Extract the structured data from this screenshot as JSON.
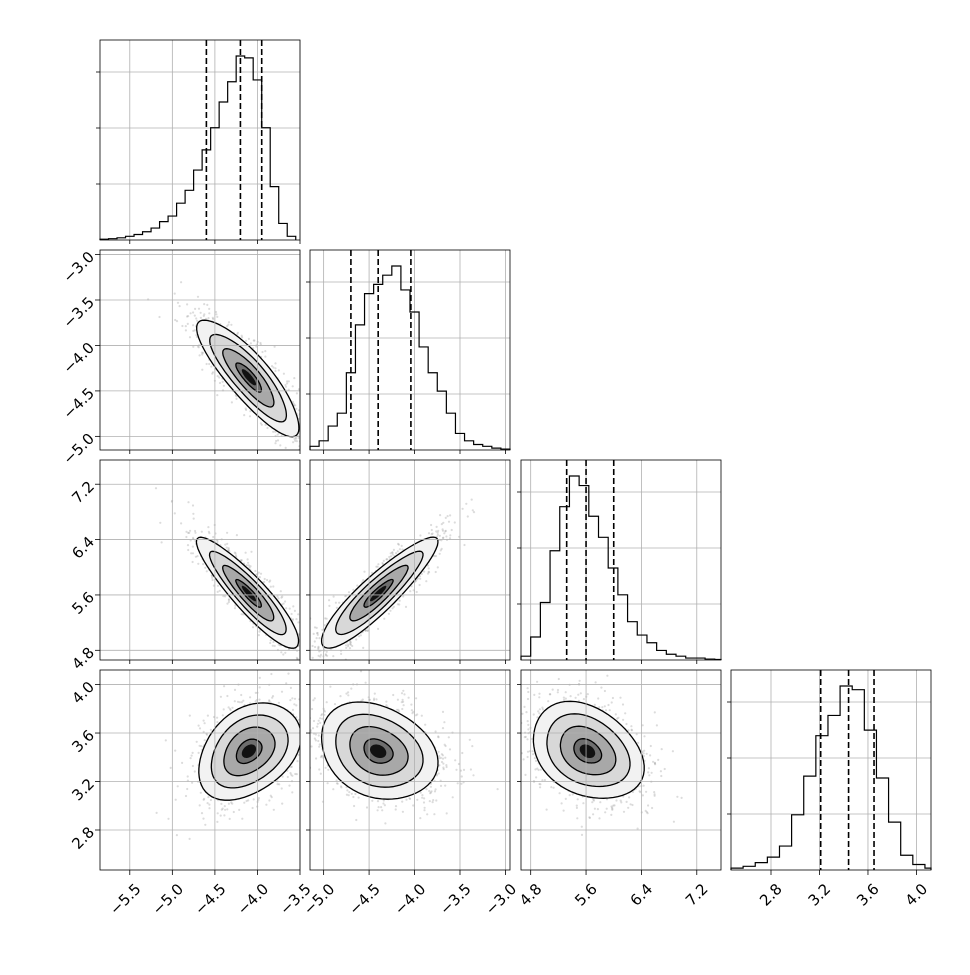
{
  "chart_data": {
    "type": "corner",
    "title": "",
    "params": [
      {
        "ticks": [
          -5.5,
          -5.0,
          -4.5,
          -4.0,
          -3.5
        ],
        "tick_labels": [
          "−5.5",
          "−5.0",
          "−4.5",
          "−4.0",
          "−3.5"
        ],
        "range": [
          -5.85,
          -3.5
        ]
      },
      {
        "ticks": [
          -5.0,
          -4.5,
          -4.0,
          -3.5,
          -3.0
        ],
        "tick_labels": [
          "−5.0",
          "−4.5",
          "−4.0",
          "−3.5",
          "−3.0"
        ],
        "range": [
          -5.15,
          -2.95
        ]
      },
      {
        "ticks": [
          4.8,
          5.6,
          6.4,
          7.2
        ],
        "tick_labels": [
          "4.8",
          "5.6",
          "6.4",
          "7.2"
        ],
        "range": [
          4.66,
          7.55
        ]
      },
      {
        "ticks": [
          2.8,
          3.2,
          3.6,
          4.0
        ],
        "tick_labels": [
          "2.8",
          "3.2",
          "3.6",
          "4.0"
        ],
        "range": [
          2.47,
          4.12
        ]
      }
    ],
    "quantiles": [
      [
        -4.6,
        -4.2,
        -3.95
      ],
      [
        -4.7,
        -4.4,
        -4.04
      ],
      [
        5.32,
        5.6,
        6.0
      ],
      [
        3.21,
        3.44,
        3.65
      ]
    ],
    "grid": true,
    "marginals": [
      {
        "bin_edges": [
          -5.85,
          -5.75,
          -5.65,
          -5.55,
          -5.45,
          -5.35,
          -5.25,
          -5.15,
          -5.05,
          -4.95,
          -4.85,
          -4.75,
          -4.65,
          -4.55,
          -4.45,
          -4.35,
          -4.25,
          -4.15,
          -4.05,
          -3.95,
          -3.85,
          -3.75,
          -3.65,
          -3.55
        ],
        "counts": [
          0.004,
          0.007,
          0.012,
          0.02,
          0.03,
          0.045,
          0.065,
          0.1,
          0.13,
          0.2,
          0.27,
          0.38,
          0.49,
          0.61,
          0.75,
          0.86,
          1.0,
          0.99,
          0.87,
          0.61,
          0.29,
          0.09,
          0.02
        ]
      },
      {
        "bin_edges": [
          -5.15,
          -5.05,
          -4.95,
          -4.85,
          -4.75,
          -4.65,
          -4.55,
          -4.45,
          -4.35,
          -4.25,
          -4.15,
          -4.05,
          -3.95,
          -3.85,
          -3.75,
          -3.65,
          -3.55,
          -3.45,
          -3.35,
          -3.25,
          -3.15,
          -3.05,
          -2.95
        ],
        "counts": [
          0.02,
          0.05,
          0.13,
          0.2,
          0.42,
          0.68,
          0.85,
          0.9,
          0.95,
          1.0,
          0.87,
          0.75,
          0.56,
          0.42,
          0.32,
          0.2,
          0.09,
          0.05,
          0.03,
          0.02,
          0.01,
          0.005
        ]
      },
      {
        "bin_edges": [
          4.66,
          4.8,
          4.94,
          5.08,
          5.22,
          5.36,
          5.5,
          5.64,
          5.78,
          5.92,
          6.06,
          6.2,
          6.34,
          6.48,
          6.62,
          6.76,
          6.9,
          7.04,
          7.18,
          7.32,
          7.46,
          7.55
        ],
        "counts": [
          0.02,
          0.12,
          0.3,
          0.57,
          0.8,
          0.96,
          0.91,
          0.75,
          0.64,
          0.48,
          0.34,
          0.2,
          0.13,
          0.09,
          0.05,
          0.03,
          0.02,
          0.01,
          0.01,
          0.005,
          0.003
        ]
      },
      {
        "bin_edges": [
          2.47,
          2.57,
          2.67,
          2.77,
          2.87,
          2.97,
          3.07,
          3.17,
          3.27,
          3.37,
          3.47,
          3.57,
          3.67,
          3.77,
          3.87,
          3.97,
          4.07,
          4.12
        ],
        "counts": [
          0.01,
          0.02,
          0.04,
          0.07,
          0.13,
          0.3,
          0.51,
          0.73,
          0.84,
          1.0,
          0.98,
          0.76,
          0.5,
          0.26,
          0.08,
          0.03,
          0.01
        ]
      }
    ],
    "pairs": [
      {
        "row": 1,
        "col": 0,
        "center": [
          -4.1,
          -4.35
        ],
        "sd": [
          0.3,
          0.32
        ],
        "rho": -0.85
      },
      {
        "row": 2,
        "col": 0,
        "center": [
          -4.1,
          5.62
        ],
        "sd": [
          0.3,
          0.4
        ],
        "rho": -0.9
      },
      {
        "row": 2,
        "col": 1,
        "center": [
          -4.4,
          5.62
        ],
        "sd": [
          0.32,
          0.4
        ],
        "rho": 0.9
      },
      {
        "row": 3,
        "col": 0,
        "center": [
          -4.1,
          3.45
        ],
        "sd": [
          0.3,
          0.2
        ],
        "rho": 0.35
      },
      {
        "row": 3,
        "col": 1,
        "center": [
          -4.4,
          3.45
        ],
        "sd": [
          0.32,
          0.2
        ],
        "rho": -0.25
      },
      {
        "row": 3,
        "col": 2,
        "center": [
          5.62,
          3.45
        ],
        "sd": [
          0.4,
          0.2
        ],
        "rho": -0.3
      }
    ],
    "contour_levels": [
      0.5,
      1.0,
      1.5,
      2.0
    ]
  }
}
